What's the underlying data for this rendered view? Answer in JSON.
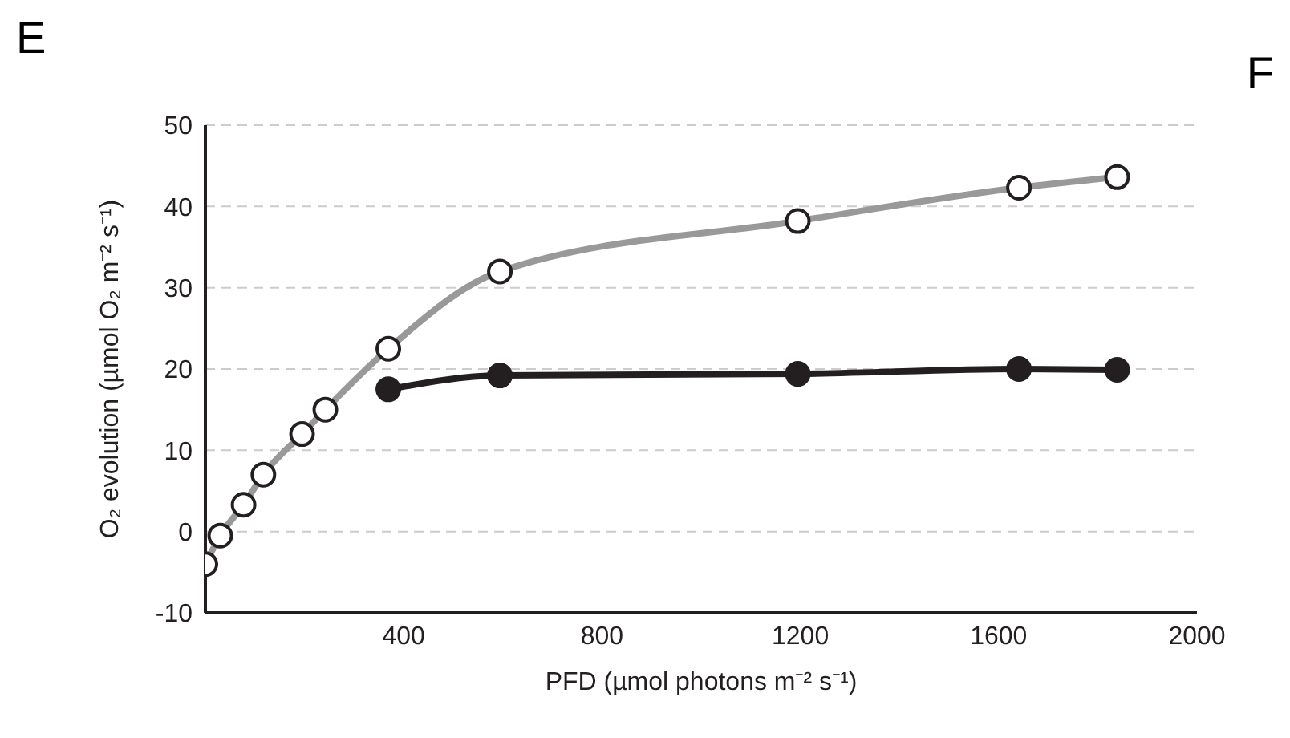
{
  "chart_data": {
    "type": "line",
    "xlabel": "PFD (µmol photons m⁻² s⁻¹)",
    "ylabel": "O₂ evolution  (µmol O₂ m⁻² s⁻¹)",
    "annotations": [
      "E",
      "F"
    ],
    "xlim": [
      0,
      2000
    ],
    "xticks": [
      400,
      800,
      1200,
      1600,
      2000
    ],
    "ylim": [
      -10,
      50
    ],
    "yticks": [
      -10,
      0,
      10,
      20,
      30,
      40,
      50
    ],
    "grid": "y",
    "marker": "circle",
    "legend": false,
    "series": [
      {
        "color": "#999999",
        "x": [
          0,
          30,
          77,
          117,
          195,
          242,
          369,
          594,
          1195,
          1641,
          1839
        ],
        "values": [
          -4,
          -0.5,
          3.3,
          7,
          12,
          15,
          22.5,
          32,
          38.2,
          42.3,
          43.6
        ]
      },
      {
        "color": "#231f20",
        "x": [
          369,
          594,
          1195,
          1641,
          1839
        ],
        "values": [
          17.5,
          19.2,
          19.4,
          20,
          19.9
        ]
      }
    ]
  }
}
